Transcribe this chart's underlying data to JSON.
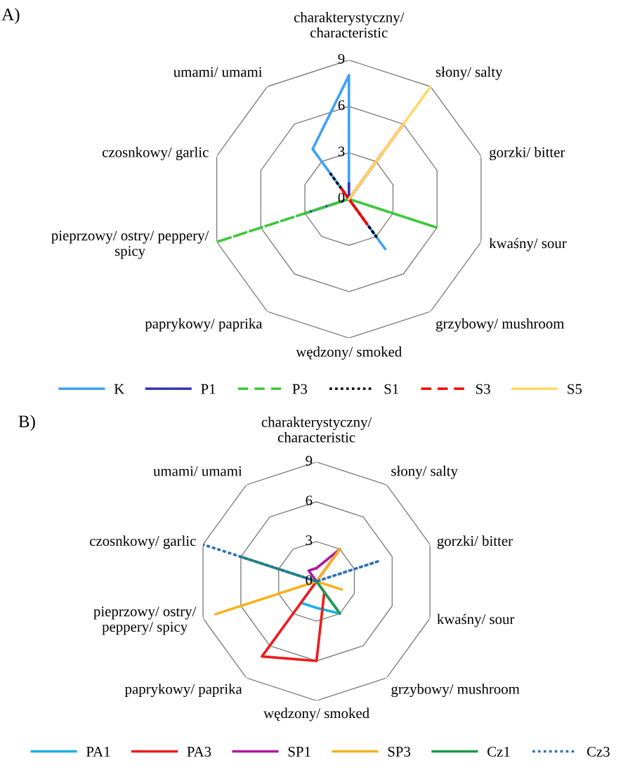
{
  "chart_data": [
    {
      "type": "radar",
      "title": "A)",
      "categories": [
        "charakterystyczny/\ncharacteristic",
        "słony/ salty",
        "gorzki/ bitter",
        "kwaśny/ sour",
        "grzybowy/ mushroom",
        "wędzony/ smoked",
        "paprykowy/ paprika",
        "pieprzowy/ ostry/ peppery/\nspicy",
        "czosnkowy/ garlic",
        "umami/ umami"
      ],
      "ylim": [
        0,
        9
      ],
      "yticks": [
        0,
        3,
        6,
        9
      ],
      "grid": true,
      "legend": "bottom",
      "series": [
        {
          "name": "K",
          "color": "#3fa0f5",
          "line_style": "solid",
          "values": [
            8,
            0,
            0,
            0,
            4,
            0,
            0,
            0,
            0,
            4
          ]
        },
        {
          "name": "P1",
          "color": "#3436b8",
          "line_style": "solid",
          "values": [
            1,
            0,
            0,
            0,
            0,
            0,
            0,
            3,
            0,
            0
          ]
        },
        {
          "name": "P3",
          "color": "#3cc83c",
          "line_style": "dashed",
          "values": [
            0,
            0,
            0,
            6,
            0,
            0,
            0,
            9,
            0,
            0
          ]
        },
        {
          "name": "S1",
          "color": "#000000",
          "line_style": "dotted",
          "values": [
            0,
            3.8,
            0,
            0,
            3,
            0,
            0,
            0,
            0,
            2
          ]
        },
        {
          "name": "S3",
          "color": "#ff0000",
          "line_style": "dashed",
          "values": [
            0,
            6,
            0,
            0,
            2,
            0,
            0,
            0,
            0,
            1
          ]
        },
        {
          "name": "S5",
          "color": "#ffd966",
          "line_style": "solid",
          "values": [
            0,
            9,
            0,
            0,
            0,
            0,
            0,
            0,
            0,
            0
          ]
        }
      ]
    },
    {
      "type": "radar",
      "title": "B)",
      "categories": [
        "charakterystyczny/\ncharacteristic",
        "słony/ salty",
        "gorzki/ bitter",
        "kwaśny/ sour",
        "grzybowy/ mushroom",
        "wędzony/ smoked",
        "paprykowy/ paprika",
        "pieprzowy/ ostry/\npeppery/ spicy",
        "czosnkowy/ garlic",
        "umami/ umami"
      ],
      "ylim": [
        0,
        9
      ],
      "yticks": [
        0,
        3,
        6,
        9
      ],
      "grid": true,
      "legend": "bottom",
      "series": [
        {
          "name": "PA1",
          "color": "#1cb0e6",
          "line_style": "solid",
          "values": [
            0,
            0,
            0,
            0,
            3,
            2,
            2,
            0,
            0,
            0
          ]
        },
        {
          "name": "PA3",
          "color": "#ee1c1c",
          "line_style": "solid",
          "values": [
            0,
            0,
            0,
            0,
            1,
            6,
            7,
            0,
            0,
            0
          ]
        },
        {
          "name": "SP1",
          "color": "#b0179f",
          "line_style": "solid",
          "values": [
            1,
            3,
            0,
            0,
            0,
            0,
            0,
            0,
            0,
            1
          ]
        },
        {
          "name": "SP3",
          "color": "#f5b21a",
          "line_style": "solid",
          "values": [
            0,
            3,
            0,
            2,
            0,
            0,
            0,
            8,
            0,
            0
          ]
        },
        {
          "name": "Cz1",
          "color": "#1e9a4a",
          "line_style": "solid",
          "values": [
            0,
            0,
            0,
            0,
            3,
            0,
            0,
            0,
            6,
            0
          ]
        },
        {
          "name": "Cz3",
          "color": "#2a6fb8",
          "line_style": "dotted",
          "values": [
            0,
            0,
            5,
            0,
            0,
            0,
            0,
            0,
            9,
            0
          ]
        }
      ]
    }
  ]
}
